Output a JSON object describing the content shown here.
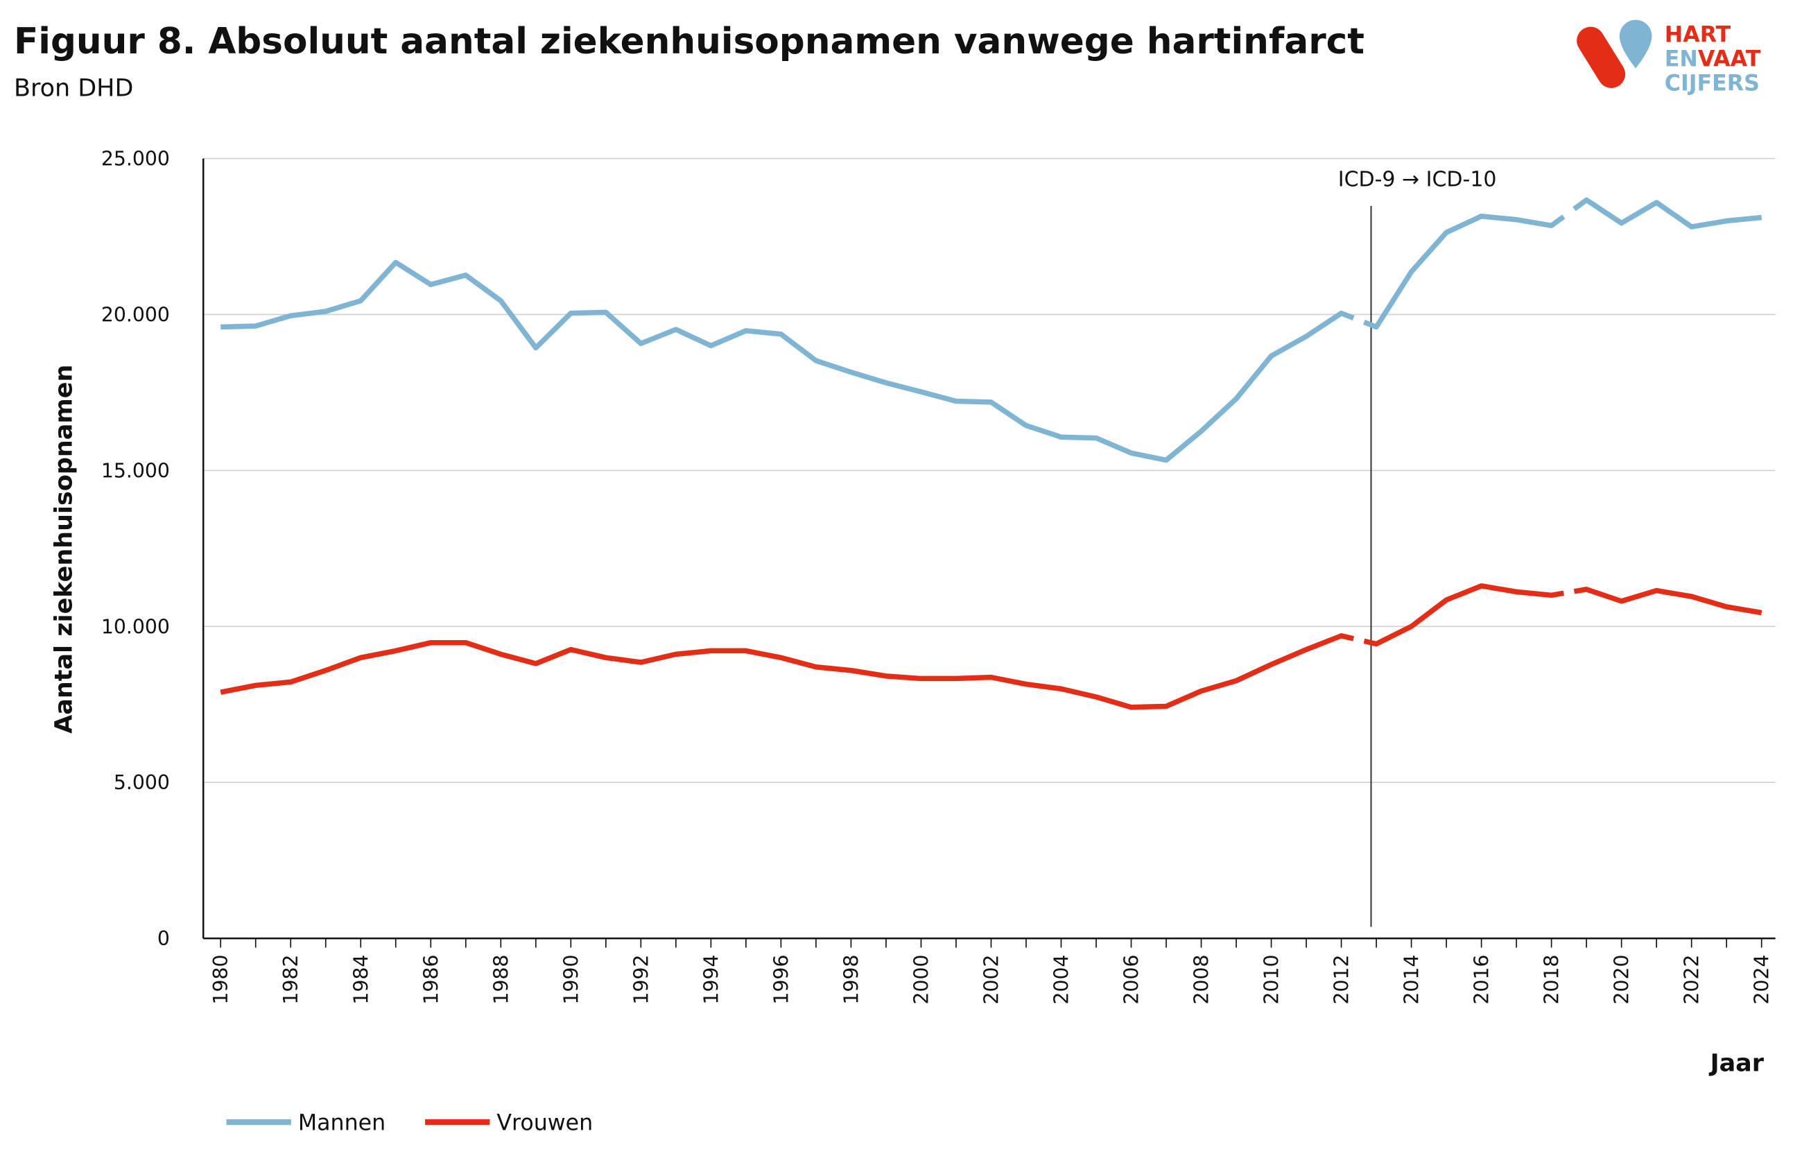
{
  "header": {
    "title": "Figuur 8. Absoluut aantal ziekenhuisopnamen vanwege hartinfarct",
    "subtitle": "Bron DHD"
  },
  "logo": {
    "line1": "HART",
    "line2a": "EN",
    "line2b": "VAAT",
    "line3": "CIJFERS",
    "colors": {
      "red": "#e32d17",
      "blue": "#7fb5d3"
    }
  },
  "chart_data": {
    "type": "line",
    "xlabel": "Jaar",
    "ylabel": "Aantal ziekenhuisopnamen",
    "ylim": [
      0,
      25000
    ],
    "yticks": [
      "0",
      "5.000",
      "10.000",
      "15.000",
      "20.000",
      "25.000"
    ],
    "ytick_values": [
      0,
      5000,
      10000,
      15000,
      20000,
      25000
    ],
    "grid": "horizontal",
    "legend": "bottom-left",
    "x": [
      1980,
      1981,
      1982,
      1983,
      1984,
      1985,
      1986,
      1987,
      1988,
      1989,
      1990,
      1991,
      1992,
      1993,
      1994,
      1995,
      1996,
      1997,
      1998,
      1999,
      2000,
      2001,
      2002,
      2003,
      2004,
      2005,
      2006,
      2007,
      2008,
      2009,
      2010,
      2011,
      2012,
      2013,
      2014,
      2015,
      2016,
      2017,
      2018,
      2019,
      2020,
      2021,
      2022,
      2023,
      2024
    ],
    "xtick_labels": [
      "1980",
      "1982",
      "1984",
      "1986",
      "1988",
      "1990",
      "1992",
      "1994",
      "1996",
      "1998",
      "2000",
      "2002",
      "2004",
      "2006",
      "2008",
      "2010",
      "2012",
      "2014",
      "2016",
      "2018",
      "2020",
      "2022",
      "2024"
    ],
    "line_breaks_after": [
      2012,
      2018
    ],
    "annotation": {
      "text": "ICD-9 → ICD-10",
      "x": 2012.85
    },
    "series": [
      {
        "name": "Mannen",
        "color": "#7fb5d3",
        "values": [
          19600,
          19630,
          19960,
          20100,
          20440,
          21670,
          20960,
          21260,
          20440,
          18930,
          20040,
          20070,
          19070,
          19520,
          19000,
          19480,
          19370,
          18520,
          18150,
          17810,
          17520,
          17220,
          17190,
          16440,
          16070,
          16040,
          15560,
          15330,
          16260,
          17300,
          18670,
          19300,
          20040,
          19600,
          21370,
          22630,
          23150,
          23040,
          22850,
          23670,
          22930,
          23590,
          22810,
          23000,
          23110
        ]
      },
      {
        "name": "Vrouwen",
        "color": "#e32d17",
        "values": [
          7890,
          8110,
          8220,
          8590,
          9000,
          9220,
          9480,
          9480,
          9110,
          8810,
          9260,
          9000,
          8850,
          9110,
          9220,
          9220,
          9000,
          8700,
          8590,
          8410,
          8330,
          8330,
          8370,
          8150,
          8000,
          7740,
          7410,
          7440,
          7930,
          8260,
          8780,
          9260,
          9700,
          9440,
          10000,
          10850,
          11300,
          11110,
          11000,
          11190,
          10810,
          11150,
          10960,
          10630,
          10440
        ]
      }
    ]
  }
}
